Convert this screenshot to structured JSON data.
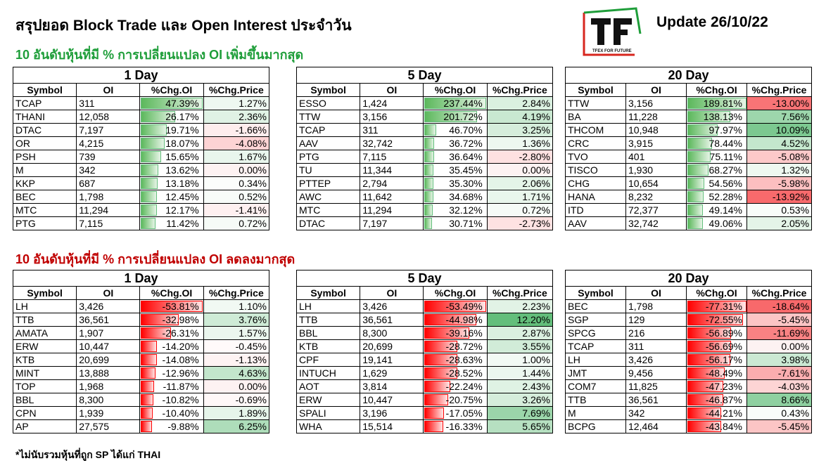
{
  "title": "สรุปยอด Block Trade และ Open Interest ประจำวัน",
  "update": "Update 26/10/22",
  "logo": {
    "letters": "TF",
    "tagline": "TFEX FOR FUTURE"
  },
  "increase_heading": "10 อันดับหุ้นที่มี % การเปลี่ยนแปลง OI เพิ่มขึ้นมากสุด",
  "decrease_heading": "10 อันดับหุ้นที่มี % การเปลี่ยนแปลง OI ลดลงมากสุด",
  "footnote": "*ไม่นับรวมหุ้นที่ถูก SP ได้แก่ THAI",
  "headers": {
    "symbol": "Symbol",
    "oi": "OI",
    "chg_oi": "%Chg.OI",
    "chg_price": "%Chg.Price"
  },
  "colors": {
    "positive": "#63be7b",
    "negative": "#f8696b",
    "up_heading": "#1f9e3a",
    "down_heading": "#c00000"
  },
  "tables": [
    {
      "period": "1 Day",
      "group": "up",
      "rows": [
        {
          "symbol": "TCAP",
          "oi": "311",
          "chg_oi": "47.39%",
          "chg_price": "1.27%",
          "oi_val": 47.39,
          "price_val": 1.27
        },
        {
          "symbol": "THANI",
          "oi": "12,058",
          "chg_oi": "26.17%",
          "chg_price": "2.36%",
          "oi_val": 26.17,
          "price_val": 2.36
        },
        {
          "symbol": "DTAC",
          "oi": "7,197",
          "chg_oi": "19.71%",
          "chg_price": "-1.66%",
          "oi_val": 19.71,
          "price_val": -1.66
        },
        {
          "symbol": "OR",
          "oi": "4,215",
          "chg_oi": "18.07%",
          "chg_price": "-4.08%",
          "oi_val": 18.07,
          "price_val": -4.08
        },
        {
          "symbol": "PSH",
          "oi": "739",
          "chg_oi": "15.65%",
          "chg_price": "1.67%",
          "oi_val": 15.65,
          "price_val": 1.67
        },
        {
          "symbol": "M",
          "oi": "342",
          "chg_oi": "13.62%",
          "chg_price": "0.00%",
          "oi_val": 13.62,
          "price_val": 0
        },
        {
          "symbol": "KKP",
          "oi": "687",
          "chg_oi": "13.18%",
          "chg_price": "0.34%",
          "oi_val": 13.18,
          "price_val": 0.34
        },
        {
          "symbol": "BEC",
          "oi": "1,798",
          "chg_oi": "12.45%",
          "chg_price": "0.52%",
          "oi_val": 12.45,
          "price_val": 0.52
        },
        {
          "symbol": "MTC",
          "oi": "11,294",
          "chg_oi": "12.17%",
          "chg_price": "-1.41%",
          "oi_val": 12.17,
          "price_val": -1.41
        },
        {
          "symbol": "PTG",
          "oi": "7,115",
          "chg_oi": "11.42%",
          "chg_price": "0.72%",
          "oi_val": 11.42,
          "price_val": 0.72
        }
      ]
    },
    {
      "period": "5 Day",
      "group": "up",
      "rows": [
        {
          "symbol": "ESSO",
          "oi": "1,424",
          "chg_oi": "237.44%",
          "chg_price": "2.84%",
          "oi_val": 237.44,
          "price_val": 2.84
        },
        {
          "symbol": "TTW",
          "oi": "3,156",
          "chg_oi": "201.72%",
          "chg_price": "4.19%",
          "oi_val": 201.72,
          "price_val": 4.19
        },
        {
          "symbol": "TCAP",
          "oi": "311",
          "chg_oi": "46.70%",
          "chg_price": "3.25%",
          "oi_val": 46.7,
          "price_val": 3.25
        },
        {
          "symbol": "AAV",
          "oi": "32,742",
          "chg_oi": "36.72%",
          "chg_price": "1.36%",
          "oi_val": 36.72,
          "price_val": 1.36
        },
        {
          "symbol": "PTG",
          "oi": "7,115",
          "chg_oi": "36.64%",
          "chg_price": "-2.80%",
          "oi_val": 36.64,
          "price_val": -2.8
        },
        {
          "symbol": "TU",
          "oi": "11,344",
          "chg_oi": "35.45%",
          "chg_price": "0.00%",
          "oi_val": 35.45,
          "price_val": 0
        },
        {
          "symbol": "PTTEP",
          "oi": "2,794",
          "chg_oi": "35.30%",
          "chg_price": "2.06%",
          "oi_val": 35.3,
          "price_val": 2.06
        },
        {
          "symbol": "AWC",
          "oi": "11,642",
          "chg_oi": "34.68%",
          "chg_price": "1.71%",
          "oi_val": 34.68,
          "price_val": 1.71
        },
        {
          "symbol": "MTC",
          "oi": "11,294",
          "chg_oi": "32.12%",
          "chg_price": "0.72%",
          "oi_val": 32.12,
          "price_val": 0.72
        },
        {
          "symbol": "DTAC",
          "oi": "7,197",
          "chg_oi": "30.71%",
          "chg_price": "-2.73%",
          "oi_val": 30.71,
          "price_val": -2.73
        }
      ]
    },
    {
      "period": "20 Day",
      "group": "up",
      "rows": [
        {
          "symbol": "TTW",
          "oi": "3,156",
          "chg_oi": "189.81%",
          "chg_price": "-13.00%",
          "oi_val": 189.81,
          "price_val": -13.0
        },
        {
          "symbol": "BA",
          "oi": "11,228",
          "chg_oi": "138.13%",
          "chg_price": "7.56%",
          "oi_val": 138.13,
          "price_val": 7.56
        },
        {
          "symbol": "THCOM",
          "oi": "10,948",
          "chg_oi": "97.97%",
          "chg_price": "10.09%",
          "oi_val": 97.97,
          "price_val": 10.09
        },
        {
          "symbol": "CRC",
          "oi": "3,915",
          "chg_oi": "78.44%",
          "chg_price": "4.52%",
          "oi_val": 78.44,
          "price_val": 4.52
        },
        {
          "symbol": "TVO",
          "oi": "401",
          "chg_oi": "75.11%",
          "chg_price": "-5.08%",
          "oi_val": 75.11,
          "price_val": -5.08
        },
        {
          "symbol": "TISCO",
          "oi": "1,930",
          "chg_oi": "68.27%",
          "chg_price": "1.32%",
          "oi_val": 68.27,
          "price_val": 1.32
        },
        {
          "symbol": "CHG",
          "oi": "10,654",
          "chg_oi": "54.56%",
          "chg_price": "-5.98%",
          "oi_val": 54.56,
          "price_val": -5.98
        },
        {
          "symbol": "HANA",
          "oi": "8,232",
          "chg_oi": "52.28%",
          "chg_price": "-13.92%",
          "oi_val": 52.28,
          "price_val": -13.92
        },
        {
          "symbol": "ITD",
          "oi": "72,377",
          "chg_oi": "49.14%",
          "chg_price": "0.53%",
          "oi_val": 49.14,
          "price_val": 0.53
        },
        {
          "symbol": "AAV",
          "oi": "32,742",
          "chg_oi": "49.06%",
          "chg_price": "2.05%",
          "oi_val": 49.06,
          "price_val": 2.05
        }
      ]
    },
    {
      "period": "1 Day",
      "group": "down",
      "rows": [
        {
          "symbol": "LH",
          "oi": "3,426",
          "chg_oi": "-53.81%",
          "chg_price": "1.10%",
          "oi_val": -53.81,
          "price_val": 1.1
        },
        {
          "symbol": "TTB",
          "oi": "36,561",
          "chg_oi": "-32.98%",
          "chg_price": "3.76%",
          "oi_val": -32.98,
          "price_val": 3.76
        },
        {
          "symbol": "AMATA",
          "oi": "1,907",
          "chg_oi": "-26.31%",
          "chg_price": "1.57%",
          "oi_val": -26.31,
          "price_val": 1.57
        },
        {
          "symbol": "ERW",
          "oi": "10,447",
          "chg_oi": "-14.20%",
          "chg_price": "-0.45%",
          "oi_val": -14.2,
          "price_val": -0.45
        },
        {
          "symbol": "KTB",
          "oi": "20,699",
          "chg_oi": "-14.08%",
          "chg_price": "-1.13%",
          "oi_val": -14.08,
          "price_val": -1.13
        },
        {
          "symbol": "MINT",
          "oi": "13,888",
          "chg_oi": "-12.96%",
          "chg_price": "4.63%",
          "oi_val": -12.96,
          "price_val": 4.63
        },
        {
          "symbol": "TOP",
          "oi": "1,968",
          "chg_oi": "-11.87%",
          "chg_price": "0.00%",
          "oi_val": -11.87,
          "price_val": 0
        },
        {
          "symbol": "BBL",
          "oi": "8,300",
          "chg_oi": "-10.82%",
          "chg_price": "-0.69%",
          "oi_val": -10.82,
          "price_val": -0.69
        },
        {
          "symbol": "CPN",
          "oi": "1,939",
          "chg_oi": "-10.40%",
          "chg_price": "1.89%",
          "oi_val": -10.4,
          "price_val": 1.89
        },
        {
          "symbol": "AP",
          "oi": "27,575",
          "chg_oi": "-9.88%",
          "chg_price": "6.25%",
          "oi_val": -9.88,
          "price_val": 6.25
        }
      ]
    },
    {
      "period": "5 Day",
      "group": "down",
      "rows": [
        {
          "symbol": "LH",
          "oi": "3,426",
          "chg_oi": "-53.49%",
          "chg_price": "2.23%",
          "oi_val": -53.49,
          "price_val": 2.23
        },
        {
          "symbol": "TTB",
          "oi": "36,561",
          "chg_oi": "-44.98%",
          "chg_price": "12.20%",
          "oi_val": -44.98,
          "price_val": 12.2
        },
        {
          "symbol": "BBL",
          "oi": "8,300",
          "chg_oi": "-39.16%",
          "chg_price": "2.87%",
          "oi_val": -39.16,
          "price_val": 2.87
        },
        {
          "symbol": "KTB",
          "oi": "20,699",
          "chg_oi": "-28.72%",
          "chg_price": "3.55%",
          "oi_val": -28.72,
          "price_val": 3.55
        },
        {
          "symbol": "CPF",
          "oi": "19,141",
          "chg_oi": "-28.63%",
          "chg_price": "1.00%",
          "oi_val": -28.63,
          "price_val": 1.0
        },
        {
          "symbol": "INTUCH",
          "oi": "1,629",
          "chg_oi": "-28.52%",
          "chg_price": "1.44%",
          "oi_val": -28.52,
          "price_val": 1.44
        },
        {
          "symbol": "AOT",
          "oi": "3,814",
          "chg_oi": "-22.24%",
          "chg_price": "2.43%",
          "oi_val": -22.24,
          "price_val": 2.43
        },
        {
          "symbol": "ERW",
          "oi": "10,447",
          "chg_oi": "-20.75%",
          "chg_price": "3.26%",
          "oi_val": -20.75,
          "price_val": 3.26
        },
        {
          "symbol": "SPALI",
          "oi": "3,196",
          "chg_oi": "-17.05%",
          "chg_price": "7.69%",
          "oi_val": -17.05,
          "price_val": 7.69
        },
        {
          "symbol": "WHA",
          "oi": "15,514",
          "chg_oi": "-16.33%",
          "chg_price": "5.65%",
          "oi_val": -16.33,
          "price_val": 5.65
        }
      ]
    },
    {
      "period": "20 Day",
      "group": "down",
      "rows": [
        {
          "symbol": "BEC",
          "oi": "1,798",
          "chg_oi": "-77.31%",
          "chg_price": "-18.64%",
          "oi_val": -77.31,
          "price_val": -18.64
        },
        {
          "symbol": "SGP",
          "oi": "129",
          "chg_oi": "-72.55%",
          "chg_price": "-5.45%",
          "oi_val": -72.55,
          "price_val": -5.45
        },
        {
          "symbol": "SPCG",
          "oi": "216",
          "chg_oi": "-56.89%",
          "chg_price": "-11.69%",
          "oi_val": -56.89,
          "price_val": -11.69
        },
        {
          "symbol": "TCAP",
          "oi": "311",
          "chg_oi": "-56.69%",
          "chg_price": "0.00%",
          "oi_val": -56.69,
          "price_val": 0
        },
        {
          "symbol": "LH",
          "oi": "3,426",
          "chg_oi": "-56.17%",
          "chg_price": "3.98%",
          "oi_val": -56.17,
          "price_val": 3.98
        },
        {
          "symbol": "JMT",
          "oi": "9,456",
          "chg_oi": "-48.49%",
          "chg_price": "-7.61%",
          "oi_val": -48.49,
          "price_val": -7.61
        },
        {
          "symbol": "COM7",
          "oi": "11,825",
          "chg_oi": "-47.23%",
          "chg_price": "-4.03%",
          "oi_val": -47.23,
          "price_val": -4.03
        },
        {
          "symbol": "TTB",
          "oi": "36,561",
          "chg_oi": "-46.87%",
          "chg_price": "8.66%",
          "oi_val": -46.87,
          "price_val": 8.66
        },
        {
          "symbol": "M",
          "oi": "342",
          "chg_oi": "-44.21%",
          "chg_price": "0.43%",
          "oi_val": -44.21,
          "price_val": 0.43
        },
        {
          "symbol": "BCPG",
          "oi": "12,464",
          "chg_oi": "-43.84%",
          "chg_price": "-5.45%",
          "oi_val": -43.84,
          "price_val": -5.45
        }
      ]
    }
  ]
}
